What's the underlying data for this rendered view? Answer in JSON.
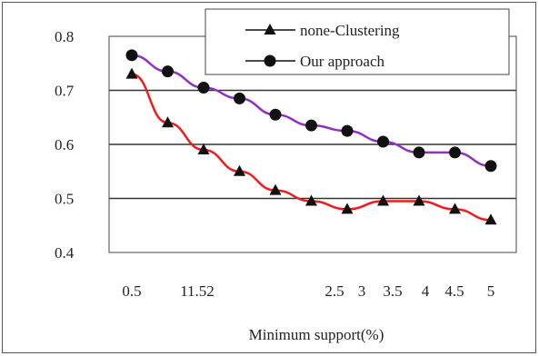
{
  "chart_data": {
    "type": "line",
    "xlabel": "Minimum support(%)",
    "ylabel": "",
    "ylim": [
      0.4,
      0.8
    ],
    "y_ticks": [
      "0.8",
      "0.7",
      "0.6",
      "0.5",
      "0.4"
    ],
    "x_ticks": [
      "0.5",
      "11.52",
      "2.5",
      "3",
      "3.5",
      "4",
      "4.5",
      "5"
    ],
    "grid": "horizontal",
    "legend_position": "top-right",
    "series": [
      {
        "name": "none-Clustering",
        "marker": "triangle",
        "color": "#ee1c1c",
        "x": [
          0.5,
          0.95,
          1.4,
          1.85,
          2.3,
          2.75,
          3.2,
          3.65,
          4.1,
          4.55,
          5.0
        ],
        "y": [
          0.73,
          0.64,
          0.59,
          0.55,
          0.515,
          0.495,
          0.48,
          0.495,
          0.495,
          0.48,
          0.46
        ]
      },
      {
        "name": "Our approach",
        "marker": "circle",
        "color": "#9030c0",
        "x": [
          0.5,
          0.95,
          1.4,
          1.85,
          2.3,
          2.75,
          3.2,
          3.65,
          4.1,
          4.55,
          5.0
        ],
        "y": [
          0.765,
          0.735,
          0.705,
          0.685,
          0.655,
          0.635,
          0.625,
          0.605,
          0.585,
          0.585,
          0.56
        ]
      }
    ]
  }
}
